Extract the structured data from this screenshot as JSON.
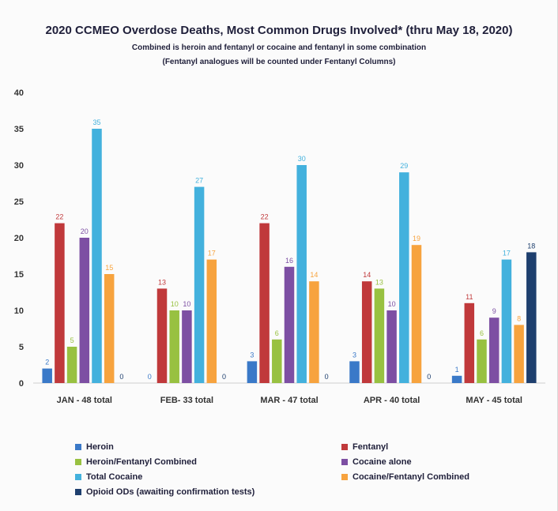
{
  "chart_data": {
    "type": "bar",
    "title": "2020 CCMEO Overdose Deaths, Most Common Drugs Involved* (thru May 18, 2020)",
    "subtitles": [
      "Combined is heroin and fentanyl or cocaine and fentanyl in some combination",
      "(Fentanyl analogues will be counted under Fentanyl Columns)"
    ],
    "categories": [
      "JAN - 48 total",
      "FEB- 33 total",
      "MAR - 47 total",
      "APR - 40 total",
      "MAY - 45 total"
    ],
    "ylim": [
      0,
      40
    ],
    "yticks": [
      "0",
      "5",
      "10",
      "15",
      "20",
      "25",
      "30",
      "35",
      "40"
    ],
    "grid": false,
    "legend_position": "bottom",
    "series": [
      {
        "name": "Heroin",
        "color": "#3a79c8",
        "values": [
          2,
          0,
          3,
          3,
          1
        ]
      },
      {
        "name": "Fentanyl",
        "color": "#c0393b",
        "values": [
          22,
          13,
          22,
          14,
          11
        ]
      },
      {
        "name": "Heroin/Fentanyl Combined",
        "color": "#98c141",
        "values": [
          5,
          10,
          6,
          13,
          6
        ]
      },
      {
        "name": "Cocaine alone",
        "color": "#7d4fa3",
        "values": [
          20,
          10,
          16,
          10,
          9
        ]
      },
      {
        "name": "Total Cocaine",
        "color": "#43b1dd",
        "values": [
          35,
          27,
          30,
          29,
          17
        ]
      },
      {
        "name": "Cocaine/Fentanyl Combined",
        "color": "#f7a33e",
        "values": [
          15,
          17,
          14,
          19,
          8
        ]
      },
      {
        "name": "Opioid ODs (awaiting confirmation tests)",
        "color": "#1e3f6e",
        "values": [
          0,
          0,
          0,
          0,
          18
        ]
      }
    ]
  }
}
